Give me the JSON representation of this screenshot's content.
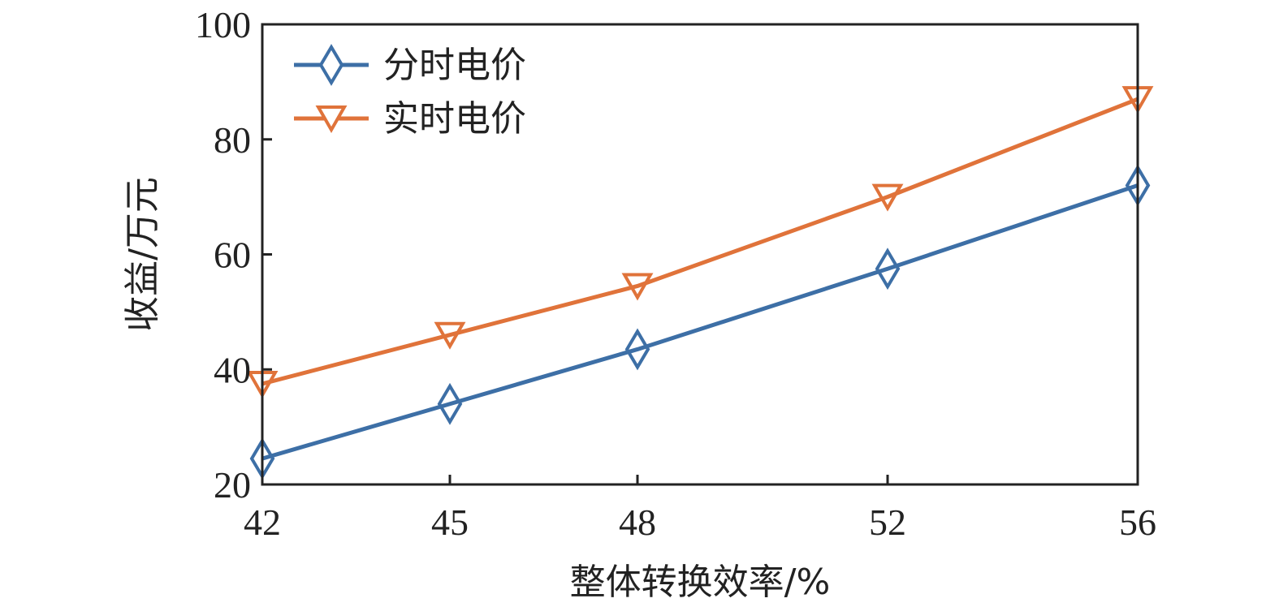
{
  "chart_data": {
    "type": "line",
    "x": [
      42,
      45,
      48,
      52,
      56
    ],
    "x_tick_labels": [
      "42",
      "45",
      "48",
      "52",
      "56"
    ],
    "y_tick_labels": [
      "20",
      "40",
      "60",
      "80",
      "100"
    ],
    "xlabel": "整体转换效率/%",
    "ylabel": "收益/万元",
    "xlim": [
      42,
      56
    ],
    "ylim": [
      20,
      100
    ],
    "grid": false,
    "legend_position": "top-left",
    "series": [
      {
        "name": "分时电价",
        "marker": "diamond",
        "color": "#3d6fa6",
        "values": [
          24.5,
          34,
          43.5,
          57.5,
          72
        ]
      },
      {
        "name": "实时电价",
        "marker": "triangle-down",
        "color": "#e0733a",
        "values": [
          37.5,
          46,
          54.5,
          70,
          87
        ]
      }
    ]
  }
}
